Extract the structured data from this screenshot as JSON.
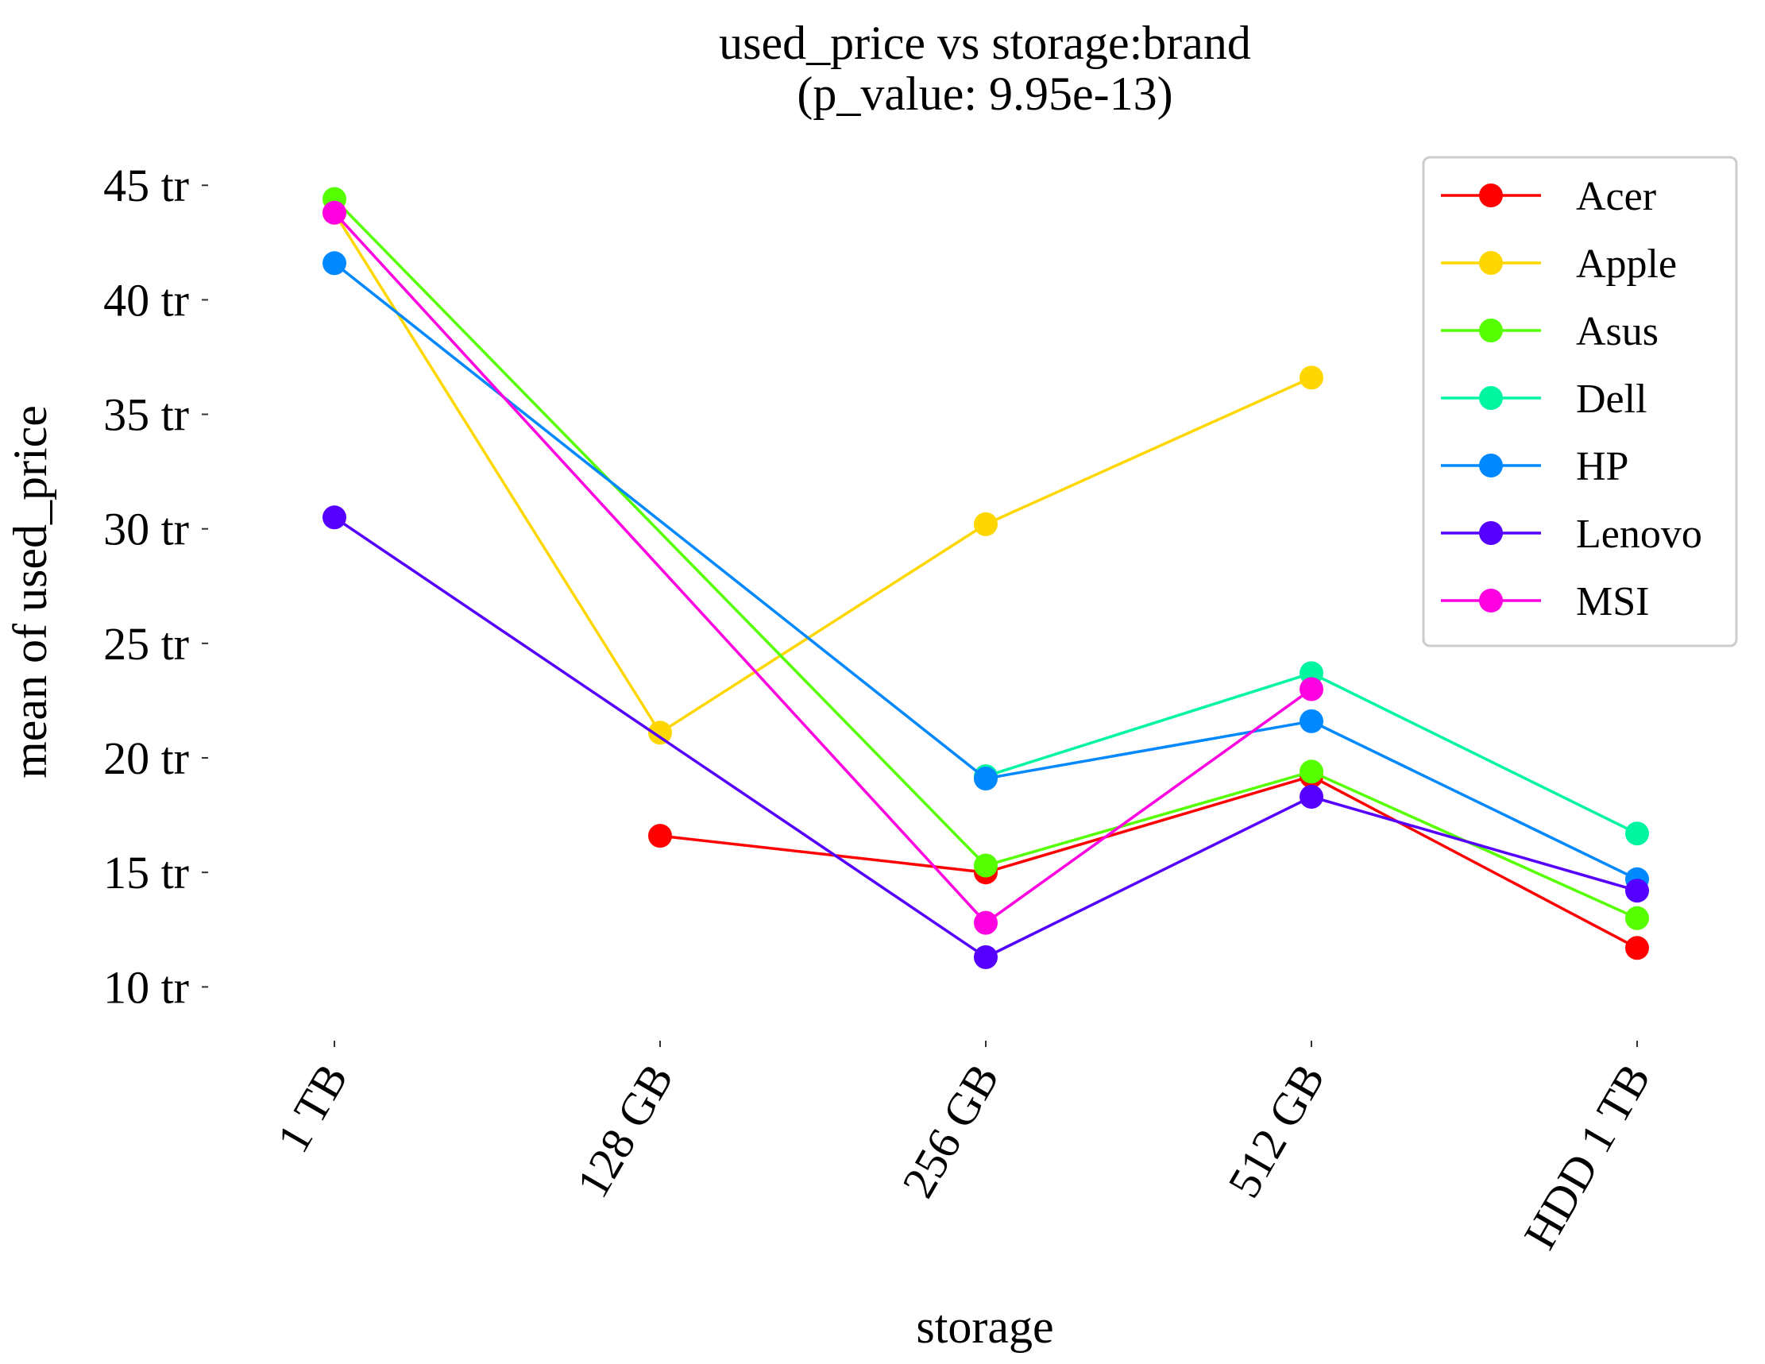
{
  "chart_data": {
    "type": "line",
    "title": [
      "used_price vs storage:brand",
      "(p_value: 9.95e-13)"
    ],
    "xlabel": "storage",
    "ylabel": "mean of used_price",
    "categories": [
      "1 TB",
      "128 GB",
      "256 GB",
      "512 GB",
      "HDD 1 TB"
    ],
    "ylim": [
      8,
      46.5
    ],
    "yticks": [
      10,
      15,
      20,
      25,
      30,
      35,
      40,
      45
    ],
    "ytick_labels": [
      "10 tr",
      "15 tr",
      "20 tr",
      "25 tr",
      "30 tr",
      "35 tr",
      "40 tr",
      "45 tr"
    ],
    "grid": false,
    "legend_position": "top-right",
    "series": [
      {
        "name": "Acer",
        "color": "#ff0000",
        "values": [
          null,
          16.6,
          15.0,
          19.2,
          11.7
        ]
      },
      {
        "name": "Apple",
        "color": "#ffd700",
        "values": [
          43.8,
          21.1,
          30.2,
          36.6,
          null
        ]
      },
      {
        "name": "Asus",
        "color": "#55ff00",
        "values": [
          44.4,
          null,
          15.3,
          19.4,
          13.0
        ]
      },
      {
        "name": "Dell",
        "color": "#00f5a0",
        "values": [
          null,
          null,
          19.2,
          23.7,
          16.7
        ]
      },
      {
        "name": "HP",
        "color": "#0088ff",
        "values": [
          41.6,
          null,
          19.1,
          21.6,
          14.7
        ]
      },
      {
        "name": "Lenovo",
        "color": "#5500ff",
        "values": [
          30.5,
          null,
          11.3,
          18.3,
          14.2
        ]
      },
      {
        "name": "MSI",
        "color": "#ff00e0",
        "values": [
          43.8,
          null,
          12.8,
          23.0,
          null
        ]
      }
    ]
  }
}
